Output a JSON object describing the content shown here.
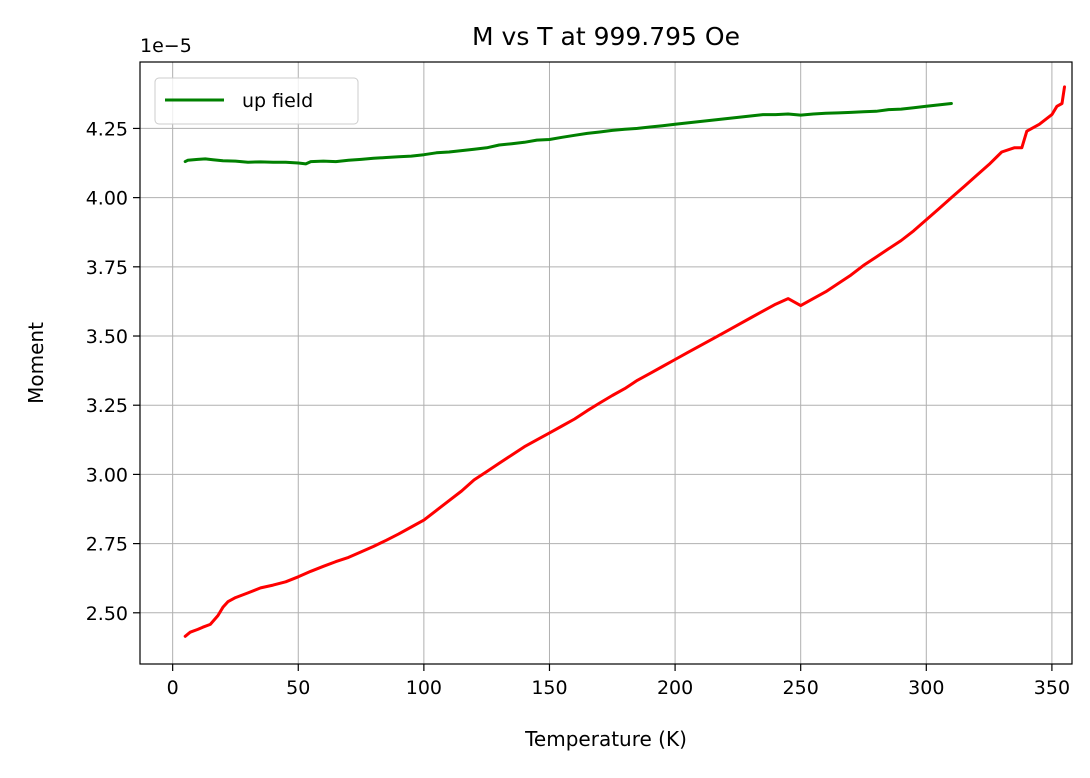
{
  "chart_data": {
    "type": "line",
    "title": "M vs T at 999.795 Oe",
    "xlabel": "Temperature (K)",
    "ylabel": "Moment",
    "y_offset_label": "1e−5",
    "xlim": [
      -13,
      358
    ],
    "ylim": [
      2.315,
      4.49
    ],
    "x_ticks": [
      0,
      50,
      100,
      150,
      200,
      250,
      300,
      350
    ],
    "x_tick_labels": [
      "0",
      "50",
      "100",
      "150",
      "200",
      "250",
      "300",
      "350"
    ],
    "y_ticks": [
      2.5,
      2.75,
      3.0,
      3.25,
      3.5,
      3.75,
      4.0,
      4.25
    ],
    "y_tick_labels": [
      "2.50",
      "2.75",
      "3.00",
      "3.25",
      "3.50",
      "3.75",
      "4.00",
      "4.25"
    ],
    "grid": true,
    "legend_position": "top-left",
    "series": [
      {
        "name": "up field",
        "color": "#008000",
        "show_in_legend": true,
        "x": [
          5,
          6,
          10,
          13,
          16,
          20,
          25,
          30,
          35,
          40,
          45,
          50,
          53,
          55,
          60,
          65,
          70,
          75,
          80,
          85,
          90,
          95,
          100,
          105,
          110,
          115,
          120,
          125,
          130,
          135,
          140,
          145,
          150,
          155,
          160,
          165,
          170,
          175,
          180,
          185,
          190,
          195,
          200,
          205,
          210,
          215,
          220,
          225,
          230,
          235,
          240,
          245,
          250,
          255,
          260,
          265,
          270,
          275,
          280,
          285,
          290,
          295,
          300,
          305,
          310
        ],
        "y": [
          4.13,
          4.135,
          4.138,
          4.14,
          4.137,
          4.133,
          4.132,
          4.128,
          4.129,
          4.128,
          4.128,
          4.125,
          4.122,
          4.13,
          4.132,
          4.13,
          4.135,
          4.138,
          4.142,
          4.145,
          4.148,
          4.15,
          4.155,
          4.162,
          4.165,
          4.17,
          4.175,
          4.18,
          4.19,
          4.195,
          4.2,
          4.208,
          4.21,
          4.218,
          4.225,
          4.232,
          4.237,
          4.243,
          4.247,
          4.25,
          4.255,
          4.26,
          4.265,
          4.27,
          4.275,
          4.28,
          4.285,
          4.29,
          4.295,
          4.3,
          4.3,
          4.302,
          4.298,
          4.302,
          4.305,
          4.306,
          4.308,
          4.31,
          4.312,
          4.318,
          4.32,
          4.325,
          4.33,
          4.335,
          4.34
        ]
      },
      {
        "name": "",
        "color": "#ff0000",
        "show_in_legend": false,
        "x": [
          5,
          7,
          10,
          12,
          15,
          18,
          20,
          22,
          25,
          30,
          35,
          40,
          45,
          50,
          55,
          60,
          65,
          70,
          75,
          80,
          85,
          90,
          95,
          100,
          105,
          110,
          115,
          120,
          125,
          130,
          135,
          140,
          145,
          150,
          155,
          160,
          165,
          170,
          175,
          180,
          185,
          190,
          195,
          200,
          205,
          210,
          215,
          220,
          225,
          230,
          235,
          240,
          245,
          250,
          255,
          260,
          265,
          270,
          275,
          280,
          285,
          290,
          295,
          300,
          305,
          310,
          315,
          320,
          325,
          330,
          335,
          338,
          340,
          345,
          350,
          352,
          354,
          355
        ],
        "y": [
          2.415,
          2.43,
          2.44,
          2.448,
          2.458,
          2.49,
          2.52,
          2.54,
          2.555,
          2.572,
          2.59,
          2.6,
          2.612,
          2.63,
          2.65,
          2.668,
          2.685,
          2.7,
          2.72,
          2.74,
          2.762,
          2.785,
          2.81,
          2.835,
          2.87,
          2.905,
          2.94,
          2.98,
          3.01,
          3.04,
          3.07,
          3.1,
          3.125,
          3.15,
          3.175,
          3.2,
          3.23,
          3.258,
          3.285,
          3.31,
          3.34,
          3.365,
          3.39,
          3.415,
          3.44,
          3.465,
          3.49,
          3.515,
          3.54,
          3.565,
          3.59,
          3.615,
          3.635,
          3.61,
          3.635,
          3.66,
          3.69,
          3.72,
          3.755,
          3.785,
          3.815,
          3.845,
          3.88,
          3.92,
          3.96,
          4.0,
          4.04,
          4.08,
          4.12,
          4.165,
          4.18,
          4.18,
          4.24,
          4.265,
          4.3,
          4.33,
          4.34,
          4.4
        ]
      }
    ]
  }
}
